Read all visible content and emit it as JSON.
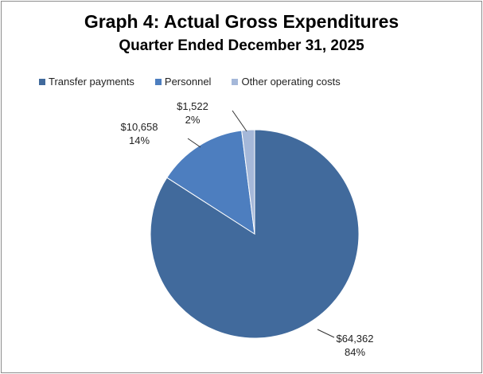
{
  "colors": {
    "transfer": "#416a9c",
    "personnel": "#4d7ebf",
    "other": "#a5b8d9"
  },
  "chart_data": {
    "type": "pie",
    "title": "Graph 4: Actual Gross Expenditures",
    "subtitle": "Quarter Ended December 31, 2025",
    "legend_position": "top",
    "slices": [
      {
        "name": "Transfer payments",
        "value": 64362,
        "value_label": "$64,362",
        "percent_label": "84%",
        "color": "#416a9c"
      },
      {
        "name": "Personnel",
        "value": 10658,
        "value_label": "$10,658",
        "percent_label": "14%",
        "color": "#4d7ebf"
      },
      {
        "name": "Other operating costs",
        "value": 1522,
        "value_label": "$1,522",
        "percent_label": "2%",
        "color": "#a5b8d9"
      }
    ]
  }
}
